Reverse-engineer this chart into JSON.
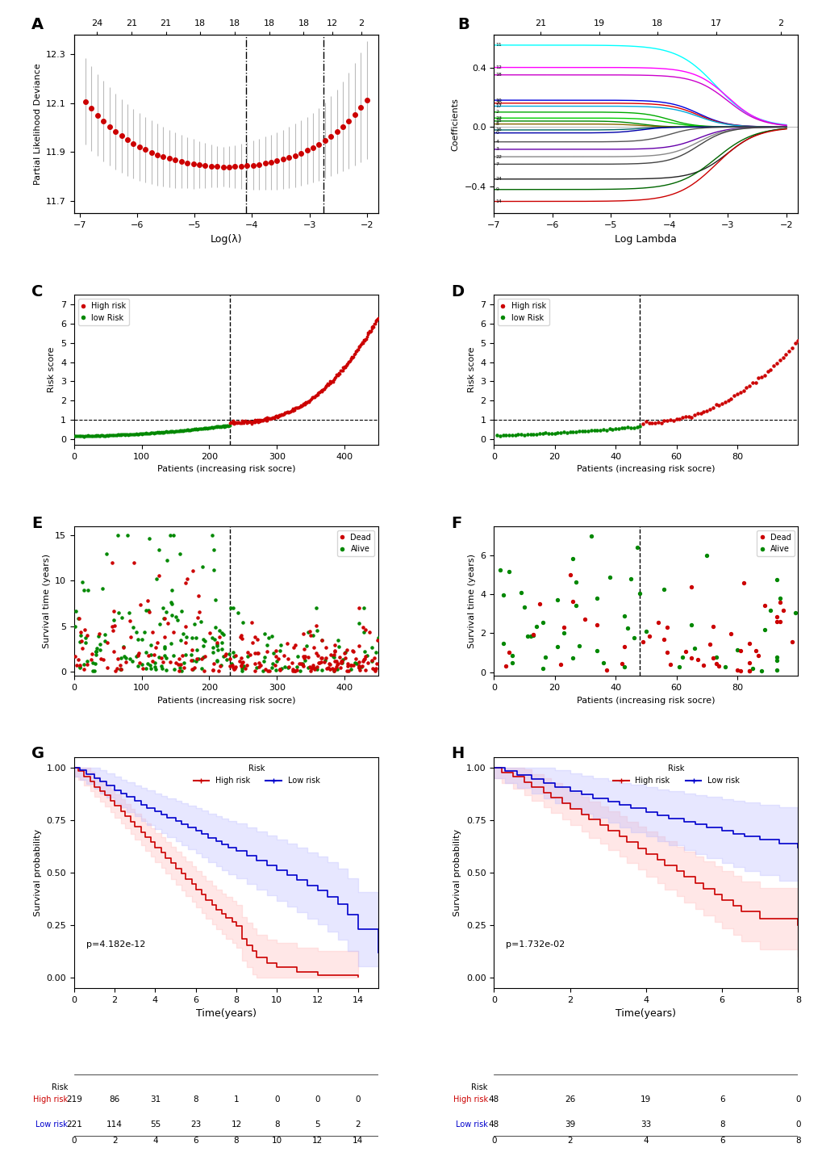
{
  "panel_A": {
    "title": "A",
    "xlabel": "Log(λ)",
    "ylabel": "Partial Likelihood Deviance",
    "top_ticks": [
      24,
      21,
      21,
      18,
      18,
      18,
      18,
      12,
      2
    ],
    "top_tick_pos": [
      -6.7,
      -6.1,
      -5.5,
      -4.9,
      -4.3,
      -3.7,
      -3.1,
      -2.6,
      -2.1
    ],
    "xlim": [
      -7.1,
      -1.8
    ],
    "ylim": [
      11.65,
      12.38
    ],
    "yticks": [
      11.7,
      11.9,
      12.1,
      12.3
    ],
    "vline1": -4.1,
    "vline2": -2.75,
    "dot_color": "#cc0000",
    "errorbar_color": "#bbbbbb"
  },
  "panel_B": {
    "title": "B",
    "xlabel": "Log Lambda",
    "ylabel": "Coefficients",
    "top_ticks": [
      21,
      19,
      18,
      17,
      2
    ],
    "top_tick_pos": [
      -6.2,
      -5.2,
      -4.2,
      -3.2,
      -2.1
    ],
    "xlim": [
      -7.0,
      -1.8
    ],
    "ylim": [
      -0.58,
      0.62
    ],
    "yticks": [
      -0.4,
      0.0,
      0.4
    ],
    "curves": [
      {
        "start": 0.55,
        "color": "cyan",
        "label": "11"
      },
      {
        "start": 0.4,
        "color": "#ff00ff",
        "label": "12"
      },
      {
        "start": 0.35,
        "color": "#cc00cc",
        "label": "18"
      },
      {
        "start": 0.18,
        "color": "#0000dd",
        "label": "10"
      },
      {
        "start": 0.16,
        "color": "#dd0000",
        "label": "20"
      },
      {
        "start": 0.14,
        "color": "#00aadd",
        "label": "17"
      },
      {
        "start": 0.1,
        "color": "#00aa00",
        "label": "2"
      },
      {
        "start": 0.06,
        "color": "#00cc00",
        "label": "23"
      },
      {
        "start": 0.04,
        "color": "#008800",
        "label": "15"
      },
      {
        "start": 0.02,
        "color": "#886600",
        "label": "8"
      },
      {
        "start": -0.02,
        "color": "#006666",
        "label": "16"
      },
      {
        "start": -0.04,
        "color": "#0000aa",
        "label": "0"
      },
      {
        "start": -0.1,
        "color": "#555555",
        "label": "4"
      },
      {
        "start": -0.15,
        "color": "#6600aa",
        "label": "3"
      },
      {
        "start": -0.2,
        "color": "#888888",
        "label": "22"
      },
      {
        "start": -0.25,
        "color": "#444444",
        "label": "7"
      },
      {
        "start": -0.35,
        "color": "#222222",
        "label": "24"
      },
      {
        "start": -0.42,
        "color": "#006600",
        "label": "9"
      },
      {
        "start": -0.5,
        "color": "#cc0000",
        "label": "14"
      }
    ]
  },
  "panel_C": {
    "title": "C",
    "xlabel": "Patients (increasing risk socre)",
    "ylabel": "Risk score",
    "xlim": [
      0,
      450
    ],
    "ylim": [
      -0.3,
      7.5
    ],
    "yticks": [
      0,
      1,
      2,
      3,
      4,
      5,
      6,
      7
    ],
    "xticks": [
      0,
      100,
      200,
      300,
      400
    ],
    "vline": 230,
    "hline": 1.0,
    "cutoff": 230,
    "n_total": 450
  },
  "panel_D": {
    "title": "D",
    "xlabel": "Patients (increasing risk socre)",
    "ylabel": "Risk score",
    "xlim": [
      0,
      100
    ],
    "ylim": [
      -0.3,
      7.5
    ],
    "yticks": [
      0,
      1,
      2,
      3,
      4,
      5,
      6,
      7
    ],
    "xticks": [
      0,
      20,
      40,
      60,
      80
    ],
    "vline": 48,
    "hline": 1.0,
    "cutoff": 48,
    "n_total": 104
  },
  "panel_E": {
    "title": "E",
    "xlabel": "Patients (increasing risk socre)",
    "ylabel": "Survival time (years)",
    "xlim": [
      0,
      450
    ],
    "ylim": [
      -0.5,
      16
    ],
    "yticks": [
      0,
      5,
      10,
      15
    ],
    "xticks": [
      0,
      100,
      200,
      300,
      400
    ],
    "vline": 230
  },
  "panel_F": {
    "title": "F",
    "xlabel": "Patients (increasing risk socre)",
    "ylabel": "Survival time (years)",
    "xlim": [
      0,
      100
    ],
    "ylim": [
      -0.2,
      7.5
    ],
    "yticks": [
      0,
      2,
      4,
      6
    ],
    "xticks": [
      0,
      20,
      40,
      60,
      80
    ],
    "vline": 48
  },
  "panel_G": {
    "title": "G",
    "xlabel": "Time(years)",
    "ylabel": "Survival probability",
    "xlim": [
      0,
      15
    ],
    "ylim": [
      -0.05,
      1.05
    ],
    "pvalue": "p=4.182e-12",
    "xticks": [
      0,
      2,
      4,
      6,
      8,
      10,
      12,
      14
    ],
    "risk_table_high": [
      219,
      86,
      31,
      8,
      1,
      0,
      0,
      0
    ],
    "risk_table_low": [
      221,
      114,
      55,
      23,
      12,
      8,
      5,
      2
    ],
    "risk_table_times": [
      0,
      2,
      4,
      6,
      8,
      10,
      12,
      14
    ]
  },
  "panel_H": {
    "title": "H",
    "xlabel": "Time(years)",
    "ylabel": "Survival probability",
    "xlim": [
      0,
      8
    ],
    "ylim": [
      -0.05,
      1.05
    ],
    "pvalue": "p=1.732e-02",
    "xticks": [
      0,
      2,
      4,
      6,
      8
    ],
    "risk_table_high": [
      48,
      26,
      19,
      6,
      0
    ],
    "risk_table_low": [
      48,
      39,
      33,
      8,
      0
    ],
    "risk_table_times": [
      0,
      2,
      4,
      6,
      8
    ]
  },
  "colors": {
    "high_risk": "#cc0000",
    "low_risk": "#008800",
    "dead": "#cc0000",
    "alive": "#008800",
    "survival_high": "#cc0000",
    "survival_low": "#0000cc",
    "survival_high_ci": "#ffbbbb",
    "survival_low_ci": "#bbbbff"
  }
}
